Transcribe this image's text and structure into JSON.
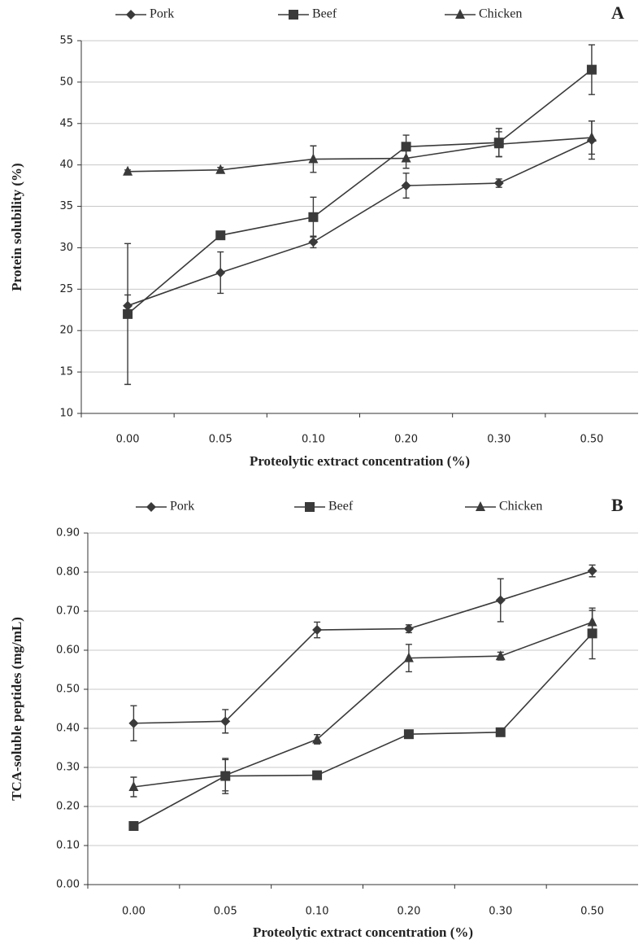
{
  "chart_data": [
    {
      "type": "line",
      "panel_label": "A",
      "x_label": "Proteolytic extract concentration (%)",
      "y_label": "Protein solubility (%)",
      "categories": [
        "0.00",
        "0.05",
        "0.10",
        "0.20",
        "0.30",
        "0.50"
      ],
      "ylim": [
        10,
        55
      ],
      "yticks": [
        10,
        15,
        20,
        25,
        30,
        35,
        40,
        45,
        50,
        55
      ],
      "grid": true,
      "series": [
        {
          "name": "Pork",
          "color": "#3a3a3a",
          "marker": "diamond",
          "values": [
            23,
            27,
            30.7,
            37.5,
            37.8,
            43
          ],
          "errors": [
            1.3,
            2.5,
            0.7,
            1.5,
            0.5,
            2.3
          ]
        },
        {
          "name": "Beef",
          "color": "#3a3a3a",
          "marker": "square",
          "values": [
            22,
            31.5,
            33.7,
            42.2,
            42.7,
            51.5
          ],
          "errors": [
            8.5,
            0.3,
            2.4,
            1.4,
            1.7,
            3
          ]
        },
        {
          "name": "Chicken",
          "color": "#3a3a3a",
          "marker": "triangle",
          "values": [
            39.2,
            39.4,
            40.7,
            40.8,
            42.5,
            43.3
          ],
          "errors": [
            0.2,
            0.3,
            1.6,
            1.2,
            1.5,
            2
          ]
        }
      ]
    },
    {
      "type": "line",
      "panel_label": "B",
      "x_label": "Proteolytic extract concentration (%)",
      "y_label": "TCA-soluble peptides (mg/mL)",
      "categories": [
        "0.00",
        "0.05",
        "0.10",
        "0.20",
        "0.30",
        "0.50"
      ],
      "ylim": [
        0,
        0.9
      ],
      "yticks": [
        {
          "value": 0,
          "label": "0.00"
        },
        {
          "value": 0.1,
          "label": "0.10"
        },
        {
          "value": 0.2,
          "label": "0.20"
        },
        {
          "value": 0.3,
          "label": "0.30"
        },
        {
          "value": 0.4,
          "label": "0.40"
        },
        {
          "value": 0.5,
          "label": "0.50"
        },
        {
          "value": 0.6,
          "label": "0.60"
        },
        {
          "value": 0.7,
          "label": "0.70"
        },
        {
          "value": 0.8,
          "label": "0.80"
        },
        {
          "value": 0.9,
          "label": "0.90"
        }
      ],
      "grid": true,
      "series": [
        {
          "name": "Pork",
          "color": "#3a3a3a",
          "marker": "diamond",
          "values": [
            0.413,
            0.418,
            0.652,
            0.655,
            0.728,
            0.803
          ],
          "errors": [
            0.045,
            0.03,
            0.02,
            0.01,
            0.055,
            0.015
          ]
        },
        {
          "name": "Beef",
          "color": "#3a3a3a",
          "marker": "square",
          "values": [
            0.15,
            0.278,
            0.28,
            0.385,
            0.39,
            0.643
          ],
          "errors": [
            0.005,
            0.045,
            0.01,
            0.005,
            0.005,
            0.065
          ]
        },
        {
          "name": "Chicken",
          "color": "#3a3a3a",
          "marker": "triangle",
          "values": [
            0.25,
            0.28,
            0.372,
            0.58,
            0.585,
            0.672
          ],
          "errors": [
            0.025,
            0.04,
            0.012,
            0.035,
            0.01,
            0.03
          ]
        }
      ]
    }
  ]
}
